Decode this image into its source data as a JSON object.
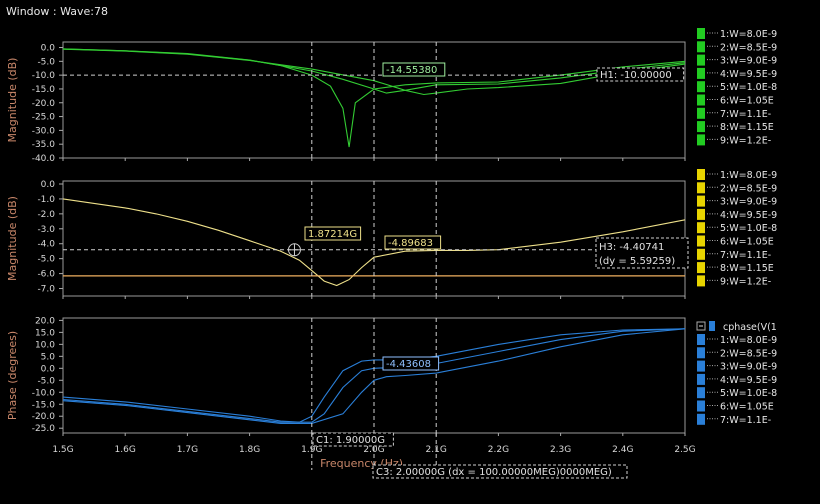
{
  "window": {
    "title": "Window : Wave:78"
  },
  "x_axis": {
    "label": "Frequency (Hz)",
    "ticks": [
      "1.5G",
      "1.6G",
      "1.7G",
      "1.8G",
      "1.9G",
      "2.0G",
      "2.1G",
      "2.2G",
      "2.3G",
      "2.4G",
      "2.5G"
    ],
    "range": [
      1.5,
      2.5
    ]
  },
  "cursors": {
    "c1": {
      "label": "C1: 1.90000G",
      "x": 1.9
    },
    "c3": {
      "label": "C3: 2.00000G (dx = 100.00000MEG)0000MEG)",
      "x": 2.0
    },
    "c_extra": {
      "x": 2.1
    }
  },
  "panels": [
    {
      "id": "mag1",
      "ylabel": "Magnitude (dB)",
      "color": "#33cc33",
      "yticks": [
        "0.0",
        "-5.0",
        "-10.0",
        "-15.0",
        "-20.0",
        "-25.0",
        "-30.0",
        "-35.0",
        "-40.0"
      ],
      "ylim": [
        -40,
        2
      ],
      "legend": [
        "1:W=8.0E-9",
        "2:W=8.5E-9",
        "3:W=9.0E-9",
        "4:W=9.5E-9",
        "5:W=1.0E-8",
        "6:W=1.05E",
        "7:W=1.1E-",
        "8:W=1.15E",
        "9:W=1.2E-"
      ],
      "marker": "-14.55380",
      "hline_label": "H1: -10.00000",
      "hline_value": -10
    },
    {
      "id": "mag2",
      "ylabel": "Magnitude (dB)",
      "color": "#eee08a",
      "yticks": [
        "0.0",
        "-1.0",
        "-2.0",
        "-3.0",
        "-4.0",
        "-5.0",
        "-6.0",
        "-7.0"
      ],
      "ylim": [
        -7.5,
        0.2
      ],
      "legend": [
        "1:W=8.0E-9",
        "2:W=8.5E-9",
        "3:W=9.0E-9",
        "4:W=9.5E-9",
        "5:W=1.0E-8",
        "6:W=1.05E",
        "7:W=1.1E-",
        "8:W=1.15E",
        "9:W=1.2E-"
      ],
      "marker_left": "1.87214G",
      "marker_right": "-4.89683",
      "hline_label": "H3: -4.40741",
      "hline_dy": "(dy = 5.59259)",
      "hline_value": -4.40741,
      "ref_line_value": -6.15
    },
    {
      "id": "phase",
      "ylabel": "Phase (degrees)",
      "color": "#2a7fd8",
      "yticks": [
        "20.0",
        "15.0",
        "10.0",
        "5.0",
        "0.0",
        "-5.0",
        "-10.0",
        "-15.0",
        "-20.0",
        "-25.0"
      ],
      "ylim": [
        -27,
        21
      ],
      "legend_title": "cphase(V(1",
      "legend": [
        "1:W=8.0E-9",
        "2:W=8.5E-9",
        "3:W=9.0E-9",
        "4:W=9.5E-9",
        "5:W=1.0E-8",
        "6:W=1.05E",
        "7:W=1.1E-"
      ],
      "marker": "-4.43608"
    }
  ],
  "chart_data": [
    {
      "type": "line",
      "title": "",
      "xlabel": "Frequency (Hz)",
      "ylabel": "Magnitude (dB)",
      "xlim": [
        1.5,
        2.5
      ],
      "ylim": [
        -40,
        2
      ],
      "series": [
        {
          "x": [
            1.5,
            1.6,
            1.7,
            1.8,
            1.85,
            1.9,
            1.93,
            1.95,
            1.96,
            1.97,
            2.0,
            2.05,
            2.1,
            2.2,
            2.3,
            2.4,
            2.5
          ],
          "y": [
            -0.5,
            -1.2,
            -2.2,
            -4.5,
            -6.5,
            -10,
            -14,
            -22,
            -36,
            -20,
            -15,
            -13.5,
            -12.8,
            -12.5,
            -10,
            -7,
            -5
          ]
        },
        {
          "x": [
            1.5,
            1.6,
            1.7,
            1.8,
            1.9,
            1.95,
            2.0,
            2.02,
            2.05,
            2.1,
            2.2,
            2.3,
            2.4,
            2.5
          ],
          "y": [
            -0.5,
            -1.2,
            -2.3,
            -4.6,
            -8.5,
            -11.5,
            -15,
            -16.5,
            -15.5,
            -13.5,
            -13.2,
            -11,
            -8,
            -5.5
          ]
        },
        {
          "x": [
            1.5,
            1.6,
            1.7,
            1.8,
            1.9,
            2.0,
            2.05,
            2.08,
            2.1,
            2.15,
            2.2,
            2.3,
            2.4,
            2.5
          ],
          "y": [
            -0.6,
            -1.3,
            -2.4,
            -4.7,
            -7.8,
            -12,
            -15.5,
            -17,
            -16.5,
            -15,
            -14.5,
            -13,
            -9,
            -6
          ]
        }
      ]
    },
    {
      "type": "line",
      "title": "",
      "xlabel": "Frequency (Hz)",
      "ylabel": "Magnitude (dB)",
      "xlim": [
        1.5,
        2.5
      ],
      "ylim": [
        -7.5,
        0.2
      ],
      "series": [
        {
          "x": [
            1.5,
            1.55,
            1.6,
            1.65,
            1.7,
            1.75,
            1.8,
            1.85,
            1.88,
            1.9,
            1.92,
            1.94,
            1.96,
            1.98,
            2.0,
            2.05,
            2.1,
            2.15,
            2.2,
            2.3,
            2.4,
            2.5
          ],
          "y": [
            -1.0,
            -1.3,
            -1.6,
            -2.0,
            -2.5,
            -3.1,
            -3.8,
            -4.5,
            -5.1,
            -5.8,
            -6.5,
            -6.8,
            -6.4,
            -5.6,
            -4.9,
            -4.5,
            -4.45,
            -4.45,
            -4.4,
            -3.9,
            -3.2,
            -2.4
          ]
        }
      ],
      "reference": {
        "y": -6.15
      }
    },
    {
      "type": "line",
      "title": "",
      "xlabel": "Frequency (Hz)",
      "ylabel": "Phase (degrees)",
      "xlim": [
        1.5,
        2.5
      ],
      "ylim": [
        -27,
        21
      ],
      "series": [
        {
          "x": [
            1.5,
            1.6,
            1.7,
            1.8,
            1.85,
            1.88,
            1.9,
            1.92,
            1.95,
            1.98,
            2.0,
            2.05,
            2.1,
            2.2,
            2.3,
            2.4,
            2.5
          ],
          "y": [
            -12,
            -14,
            -17,
            -20,
            -22,
            -22.5,
            -20,
            -12,
            -1,
            3,
            3.5,
            3.5,
            5,
            10,
            14,
            16,
            16.5
          ]
        },
        {
          "x": [
            1.5,
            1.6,
            1.7,
            1.8,
            1.85,
            1.9,
            1.92,
            1.95,
            1.98,
            2.0,
            2.02,
            2.05,
            2.1,
            2.2,
            2.3,
            2.4,
            2.5
          ],
          "y": [
            -13,
            -15,
            -18,
            -21,
            -22.5,
            -22.5,
            -19,
            -8,
            -1,
            0,
            0.2,
            0.5,
            2,
            7,
            12,
            15.5,
            16.5
          ]
        },
        {
          "x": [
            1.5,
            1.6,
            1.7,
            1.8,
            1.85,
            1.9,
            1.95,
            1.98,
            2.0,
            2.02,
            2.05,
            2.1,
            2.2,
            2.3,
            2.4,
            2.5
          ],
          "y": [
            -13.5,
            -15.5,
            -18.5,
            -21.5,
            -23,
            -23,
            -19,
            -10,
            -5,
            -3.5,
            -3,
            -2,
            3,
            9,
            14,
            16.5
          ]
        }
      ]
    }
  ]
}
